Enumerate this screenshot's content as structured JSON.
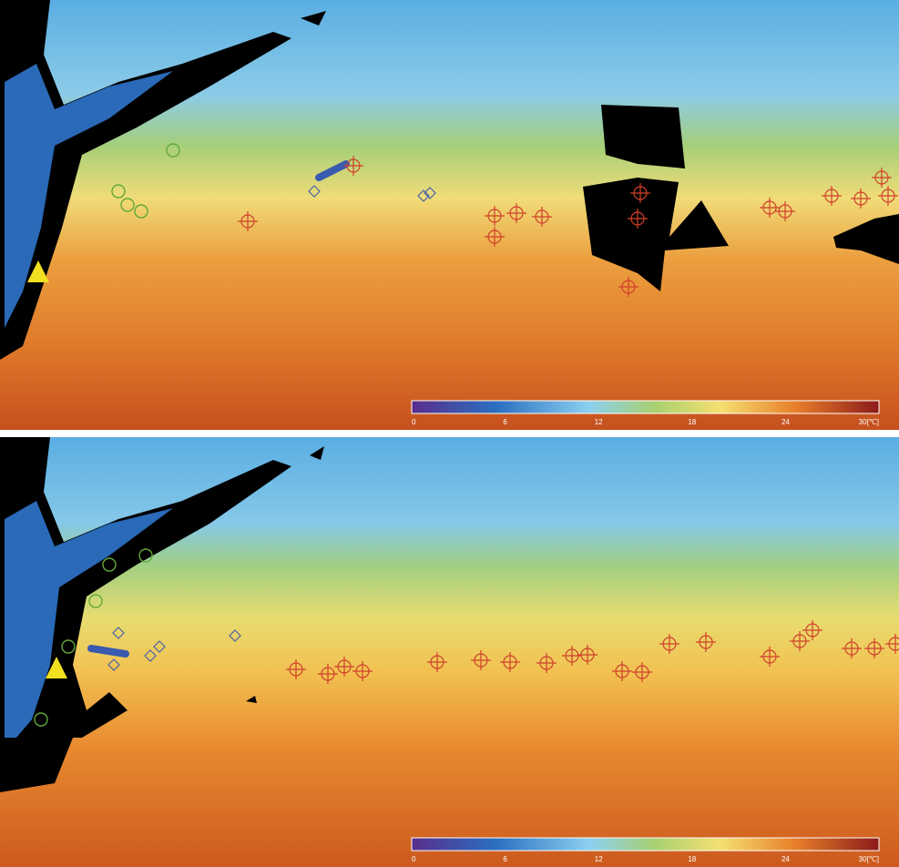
{
  "panels": [
    {
      "colorbar": {
        "labels": [
          "0",
          "6",
          "12",
          "18",
          "24",
          "30[℃]"
        ]
      }
    },
    {
      "colorbar": {
        "labels": [
          "0",
          "6",
          "12",
          "18",
          "24",
          "30[℃]"
        ]
      }
    }
  ]
}
